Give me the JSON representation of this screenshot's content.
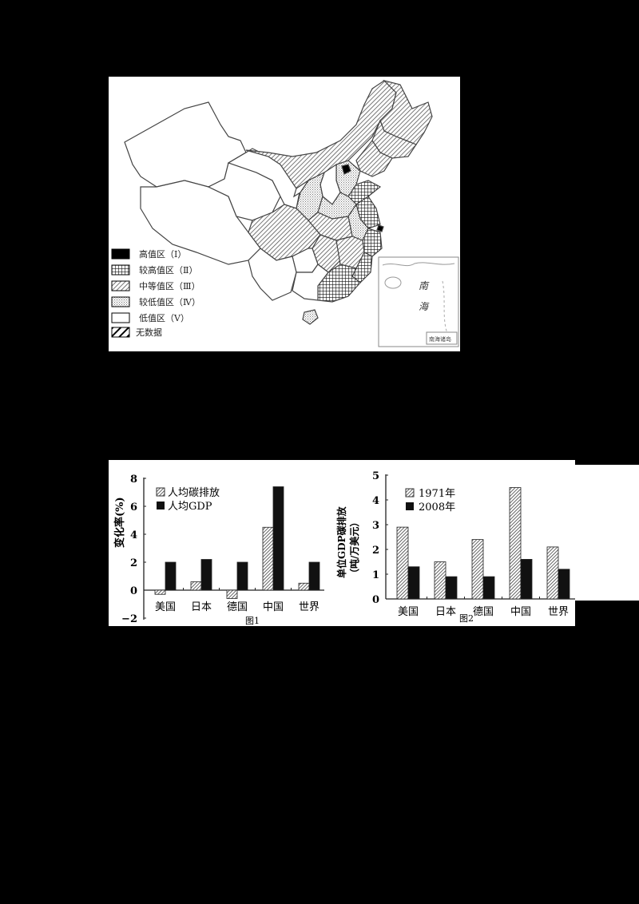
{
  "map": {
    "legend": [
      {
        "label": "高值区（Ⅰ）",
        "pattern": "solid"
      },
      {
        "label": "较高值区（Ⅱ）",
        "pattern": "grid"
      },
      {
        "label": "中等值区（Ⅲ）",
        "pattern": "diag"
      },
      {
        "label": "较低值区（Ⅳ）",
        "pattern": "dots"
      },
      {
        "label": "低值区（Ⅴ）",
        "pattern": "blank"
      },
      {
        "label": "无数据",
        "pattern": "bold-diag"
      }
    ],
    "inset": {
      "sea_label_1": "南",
      "sea_label_2": "海",
      "caption": "南海诸岛"
    }
  },
  "chart_data": [
    {
      "type": "bar",
      "title": "图1",
      "xlabel": "",
      "ylabel": "变化率(%)",
      "ylim": [
        -2,
        8
      ],
      "yticks": [
        -2,
        0,
        2,
        4,
        6,
        8
      ],
      "categories": [
        "美国",
        "日本",
        "德国",
        "中国",
        "世界"
      ],
      "series": [
        {
          "name": "人均碳排放",
          "pattern": "hatch",
          "values": [
            -0.3,
            0.6,
            -0.6,
            4.5,
            0.5
          ]
        },
        {
          "name": "人均GDP",
          "pattern": "solid",
          "values": [
            2.0,
            2.2,
            2.0,
            7.4,
            2.0
          ]
        }
      ],
      "legend_position": "upper-left",
      "grid": false
    },
    {
      "type": "bar",
      "title": "图2",
      "xlabel": "",
      "ylabel": "单位GDP碳排放（吨/万美元）",
      "ylim": [
        0,
        5
      ],
      "yticks": [
        0,
        1,
        2,
        3,
        4,
        5
      ],
      "categories": [
        "美国",
        "日本",
        "德国",
        "中国",
        "世界"
      ],
      "series": [
        {
          "name": "1971年",
          "pattern": "hatch",
          "values": [
            2.9,
            1.5,
            2.4,
            4.5,
            2.1
          ]
        },
        {
          "name": "2008年",
          "pattern": "solid",
          "values": [
            1.3,
            0.9,
            0.9,
            1.6,
            1.2
          ]
        }
      ],
      "legend_position": "upper-left",
      "grid": false
    }
  ]
}
